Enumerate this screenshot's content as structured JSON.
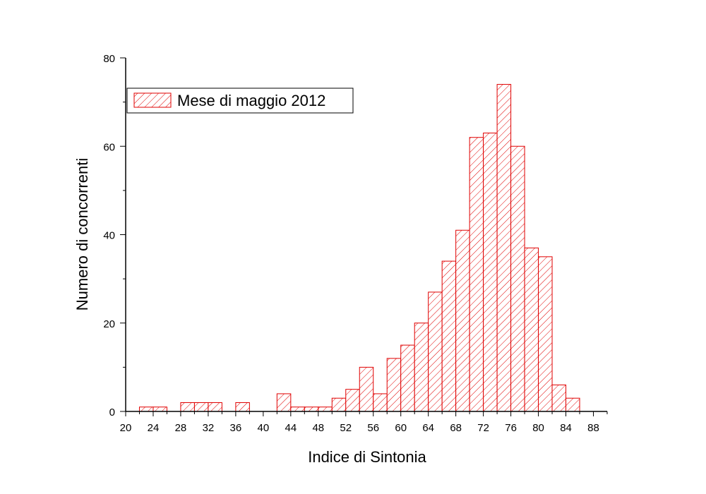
{
  "chart_data": {
    "type": "bar",
    "title": "",
    "xlabel": "Indice di Sintonia",
    "ylabel": "Numero di concorrenti",
    "xlim": [
      20,
      90
    ],
    "ylim": [
      0,
      80
    ],
    "bin_width": 2,
    "x_ticks": [
      20,
      24,
      28,
      32,
      36,
      40,
      44,
      48,
      52,
      56,
      60,
      64,
      68,
      72,
      76,
      80,
      84,
      88
    ],
    "y_ticks": [
      0,
      20,
      40,
      60,
      80
    ],
    "legend_position": "top-left",
    "grid": false,
    "series": [
      {
        "name": "Mese di maggio 2012",
        "color": "#e00000",
        "fill_pattern": "diagonal-hatch",
        "bin_start": [
          22,
          24,
          28,
          30,
          32,
          36,
          42,
          44,
          46,
          48,
          50,
          52,
          54,
          56,
          58,
          60,
          62,
          64,
          66,
          68,
          70,
          72,
          74,
          76,
          78,
          80,
          82,
          84
        ],
        "values": [
          1,
          1,
          2,
          2,
          2,
          2,
          4,
          1,
          1,
          1,
          3,
          5,
          10,
          4,
          12,
          15,
          20,
          27,
          34,
          41,
          62,
          63,
          74,
          60,
          37,
          35,
          6,
          3
        ]
      }
    ]
  }
}
